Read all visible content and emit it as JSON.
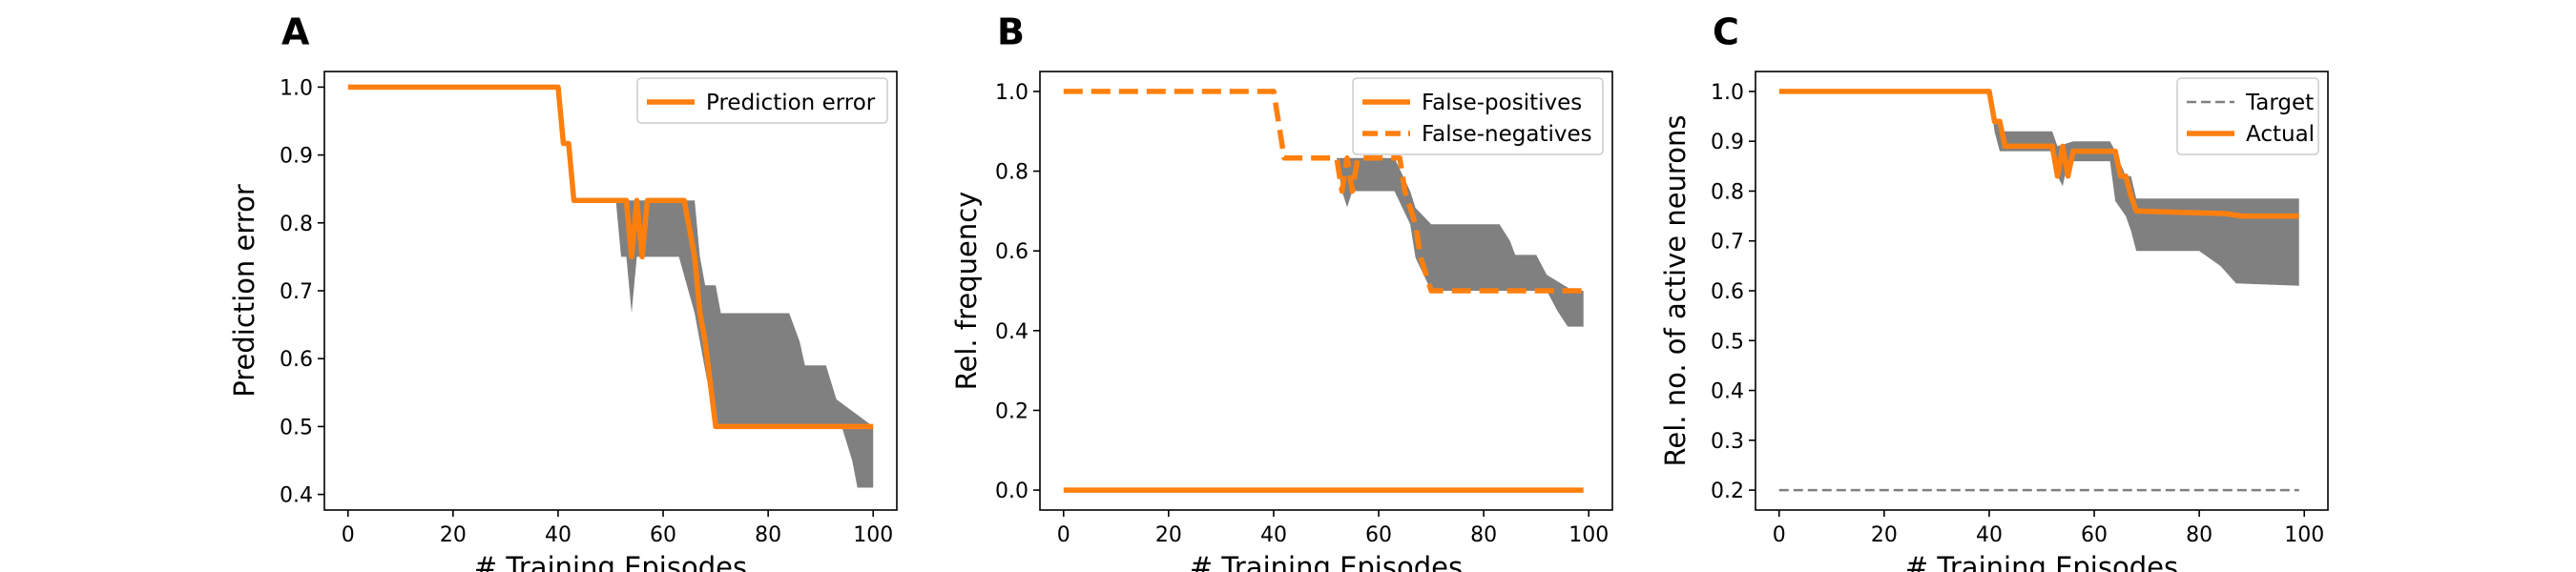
{
  "colors": {
    "orange": "#ff7f0e",
    "band": "#808080",
    "target": "#808080",
    "axis": "#000000"
  },
  "chart_data": [
    {
      "type": "line",
      "panel": "A",
      "xlabel": "# Training Episodes",
      "ylabel": "Prediction error",
      "xlim": [
        -4.5,
        104.5
      ],
      "ylim": [
        0.377,
        1.023
      ],
      "xticks": [
        0,
        20,
        40,
        60,
        80,
        100
      ],
      "yticks": [
        0.4,
        0.5,
        0.6,
        0.7,
        0.8,
        0.9,
        1.0
      ],
      "ytick_labels": [
        "0.4",
        "0.5",
        "0.6",
        "0.7",
        "0.8",
        "0.9",
        "1.0"
      ],
      "legend": "top-right",
      "series": [
        {
          "name": "Prediction error",
          "style": "solid",
          "points": [
            [
              0,
              1.0
            ],
            [
              40,
              1.0
            ],
            [
              41,
              0.917
            ],
            [
              42,
              0.917
            ],
            [
              43,
              0.833
            ],
            [
              53,
              0.833
            ],
            [
              54,
              0.75
            ],
            [
              55,
              0.833
            ],
            [
              56,
              0.75
            ],
            [
              57,
              0.833
            ],
            [
              64,
              0.833
            ],
            [
              66,
              0.75
            ],
            [
              67,
              0.667
            ],
            [
              68,
              0.625
            ],
            [
              70,
              0.5
            ],
            [
              100,
              0.5
            ]
          ]
        }
      ],
      "band": {
        "upper": [
          [
            51,
            0.833
          ],
          [
            52,
            0.833
          ],
          [
            53,
            0.833
          ],
          [
            54,
            0.833
          ],
          [
            55,
            0.833
          ],
          [
            63,
            0.833
          ],
          [
            66,
            0.833
          ],
          [
            67,
            0.75
          ],
          [
            68,
            0.708
          ],
          [
            70,
            0.708
          ],
          [
            71,
            0.667
          ],
          [
            84,
            0.667
          ],
          [
            86,
            0.625
          ],
          [
            87,
            0.59
          ],
          [
            91,
            0.59
          ],
          [
            93,
            0.54
          ],
          [
            100,
            0.5
          ]
        ],
        "lower": [
          [
            51,
            0.833
          ],
          [
            52,
            0.75
          ],
          [
            53,
            0.75
          ],
          [
            54,
            0.667
          ],
          [
            55,
            0.75
          ],
          [
            63,
            0.75
          ],
          [
            66,
            0.667
          ],
          [
            67,
            0.625
          ],
          [
            68,
            0.583
          ],
          [
            70,
            0.5
          ],
          [
            94,
            0.5
          ],
          [
            96,
            0.45
          ],
          [
            97,
            0.41
          ],
          [
            100,
            0.41
          ]
        ]
      }
    },
    {
      "type": "line",
      "panel": "B",
      "xlabel": "# Training Episodes",
      "ylabel": "Rel. frequency",
      "xlim": [
        -4.5,
        104.5
      ],
      "ylim": [
        -0.05,
        1.05
      ],
      "xticks": [
        0,
        20,
        40,
        60,
        80,
        100
      ],
      "yticks": [
        0.0,
        0.2,
        0.4,
        0.6,
        0.8,
        1.0
      ],
      "ytick_labels": [
        "0.0",
        "0.2",
        "0.4",
        "0.6",
        "0.8",
        "1.0"
      ],
      "legend": "top-right",
      "series": [
        {
          "name": "False-positives",
          "style": "solid",
          "points": [
            [
              0,
              0.0
            ],
            [
              99,
              0.0
            ]
          ]
        },
        {
          "name": "False-negatives",
          "style": "dashed",
          "points": [
            [
              0,
              1.0
            ],
            [
              40,
              1.0
            ],
            [
              42,
              0.833
            ],
            [
              52,
              0.833
            ],
            [
              53,
              0.75
            ],
            [
              54,
              0.833
            ],
            [
              55,
              0.75
            ],
            [
              56,
              0.833
            ],
            [
              64,
              0.833
            ],
            [
              65,
              0.75
            ],
            [
              67,
              0.667
            ],
            [
              68,
              0.583
            ],
            [
              70,
              0.5
            ],
            [
              97,
              0.5
            ],
            [
              99,
              0.5
            ]
          ]
        }
      ],
      "band": {
        "upper": [
          [
            52,
            0.833
          ],
          [
            53,
            0.833
          ],
          [
            63,
            0.833
          ],
          [
            66,
            0.75
          ],
          [
            67,
            0.708
          ],
          [
            70,
            0.667
          ],
          [
            83,
            0.667
          ],
          [
            85,
            0.625
          ],
          [
            86,
            0.59
          ],
          [
            90,
            0.59
          ],
          [
            92,
            0.54
          ],
          [
            97,
            0.5
          ],
          [
            99,
            0.5
          ]
        ],
        "lower": [
          [
            52,
            0.833
          ],
          [
            53,
            0.75
          ],
          [
            54,
            0.71
          ],
          [
            55,
            0.75
          ],
          [
            63,
            0.75
          ],
          [
            66,
            0.667
          ],
          [
            67,
            0.583
          ],
          [
            70,
            0.5
          ],
          [
            92,
            0.5
          ],
          [
            94,
            0.45
          ],
          [
            96,
            0.41
          ],
          [
            99,
            0.41
          ]
        ]
      }
    },
    {
      "type": "line",
      "panel": "C",
      "xlabel": "# Training Episodes",
      "ylabel": "Rel. no. of active neurons",
      "xlim": [
        -4.5,
        104.5
      ],
      "ylim": [
        0.16,
        1.04
      ],
      "xticks": [
        0,
        20,
        40,
        60,
        80,
        100
      ],
      "yticks": [
        0.2,
        0.3,
        0.4,
        0.5,
        0.6,
        0.7,
        0.8,
        0.9,
        1.0
      ],
      "ytick_labels": [
        "0.2",
        "0.3",
        "0.4",
        "0.5",
        "0.6",
        "0.7",
        "0.8",
        "0.9",
        "1.0"
      ],
      "legend": "top-right",
      "series": [
        {
          "name": "Target",
          "style": "dashed-thin",
          "points": [
            [
              0,
              0.2
            ],
            [
              99,
              0.2
            ]
          ]
        },
        {
          "name": "Actual",
          "style": "solid",
          "points": [
            [
              0,
              1.0
            ],
            [
              40,
              1.0
            ],
            [
              41,
              0.94
            ],
            [
              42,
              0.94
            ],
            [
              43,
              0.89
            ],
            [
              52,
              0.89
            ],
            [
              53,
              0.83
            ],
            [
              54,
              0.89
            ],
            [
              55,
              0.83
            ],
            [
              56,
              0.88
            ],
            [
              64,
              0.88
            ],
            [
              65,
              0.83
            ],
            [
              66,
              0.83
            ],
            [
              67,
              0.79
            ],
            [
              68,
              0.76
            ],
            [
              85,
              0.755
            ],
            [
              88,
              0.75
            ],
            [
              99,
              0.75
            ]
          ]
        }
      ],
      "band": {
        "upper": [
          [
            40,
            1.0
          ],
          [
            41,
            0.96
          ],
          [
            42,
            0.92
          ],
          [
            52,
            0.92
          ],
          [
            53,
            0.89
          ],
          [
            56,
            0.9
          ],
          [
            63,
            0.9
          ],
          [
            64,
            0.88
          ],
          [
            66,
            0.83
          ],
          [
            67,
            0.83
          ],
          [
            68,
            0.785
          ],
          [
            99,
            0.785
          ]
        ],
        "lower": [
          [
            40,
            1.0
          ],
          [
            41,
            0.92
          ],
          [
            42,
            0.88
          ],
          [
            52,
            0.88
          ],
          [
            53,
            0.83
          ],
          [
            54,
            0.81
          ],
          [
            55,
            0.86
          ],
          [
            63,
            0.86
          ],
          [
            64,
            0.78
          ],
          [
            66,
            0.75
          ],
          [
            67,
            0.72
          ],
          [
            68,
            0.68
          ],
          [
            80,
            0.68
          ],
          [
            84,
            0.65
          ],
          [
            87,
            0.615
          ],
          [
            99,
            0.61
          ]
        ]
      }
    }
  ]
}
